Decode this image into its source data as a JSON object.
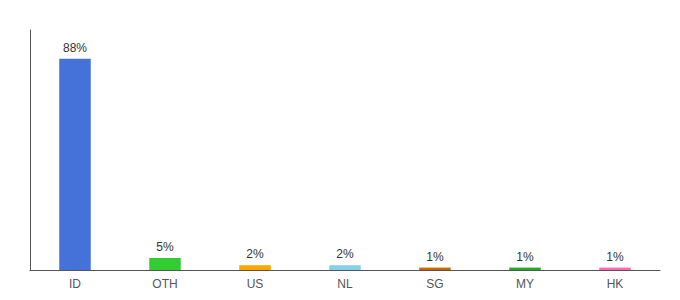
{
  "chart_data": {
    "type": "bar",
    "categories": [
      "ID",
      "OTH",
      "US",
      "NL",
      "SG",
      "MY",
      "HK"
    ],
    "values": [
      88,
      5,
      2,
      2,
      1,
      1,
      1
    ],
    "value_labels": [
      "88%",
      "5%",
      "2%",
      "2%",
      "1%",
      "1%",
      "1%"
    ],
    "colors": [
      "#4472d9",
      "#33cc33",
      "#ffa500",
      "#87ceeb",
      "#cc6600",
      "#22aa22",
      "#ff69b4"
    ],
    "ylim": [
      0,
      100
    ],
    "yticks": [],
    "grid": false,
    "tick_labels": "x",
    "data_labels": true
  }
}
